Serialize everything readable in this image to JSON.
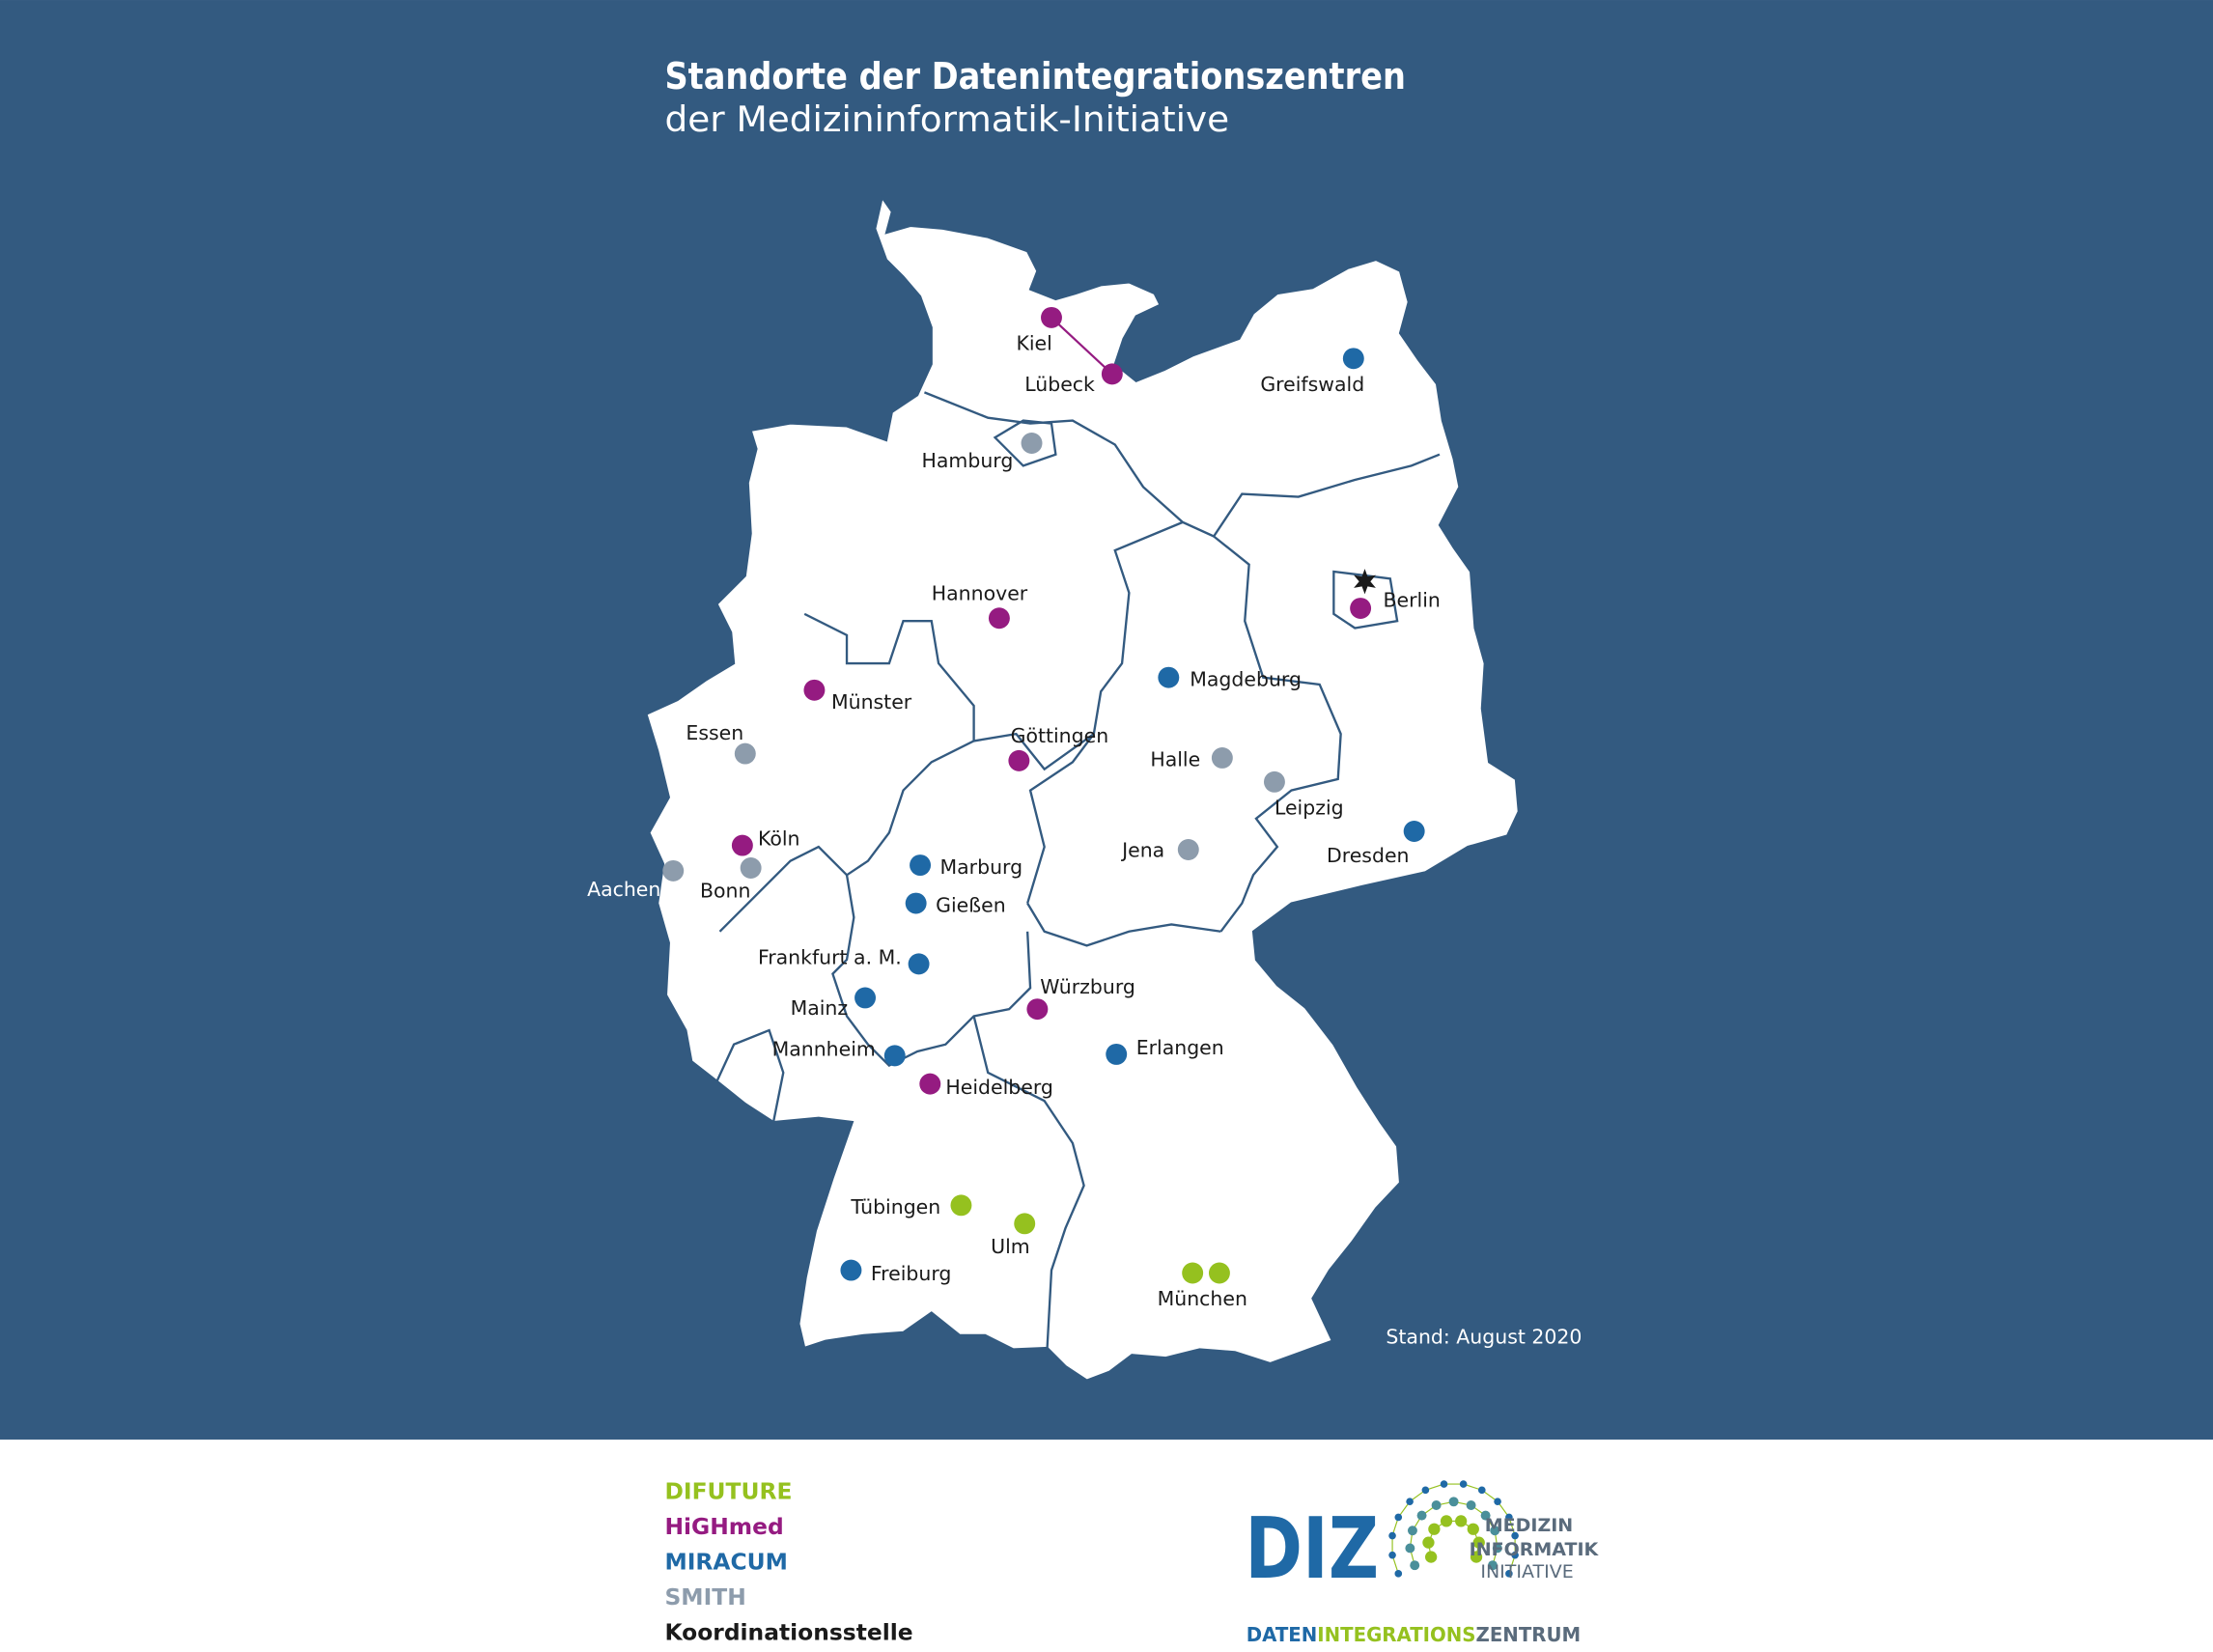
{
  "header": {
    "title": "Standorte der Datenintegrationszentren",
    "subtitle": "der Medizininformatik-Initiative"
  },
  "colors": {
    "background": "#335a80",
    "DIFUTURE": "#95c11f",
    "HiGHmed": "#951b81",
    "MIRACUM": "#1f69a6",
    "SMITH": "#8d9cac",
    "Koordinationsstelle": "#1a1a1a"
  },
  "map": {
    "stand": "Stand: August 2020",
    "cities": [
      {
        "name": "Kiel",
        "network": "HiGHmed"
      },
      {
        "name": "Lübeck",
        "network": "HiGHmed"
      },
      {
        "name": "Hamburg",
        "network": "SMITH"
      },
      {
        "name": "Greifswald",
        "network": "MIRACUM"
      },
      {
        "name": "Berlin",
        "network": "HiGHmed"
      },
      {
        "name": "Hannover",
        "network": "HiGHmed"
      },
      {
        "name": "Münster",
        "network": "HiGHmed"
      },
      {
        "name": "Magdeburg",
        "network": "MIRACUM"
      },
      {
        "name": "Essen",
        "network": "SMITH"
      },
      {
        "name": "Göttingen",
        "network": "HiGHmed"
      },
      {
        "name": "Halle",
        "network": "SMITH"
      },
      {
        "name": "Leipzig",
        "network": "SMITH"
      },
      {
        "name": "Dresden",
        "network": "MIRACUM"
      },
      {
        "name": "Köln",
        "network": "HiGHmed"
      },
      {
        "name": "Bonn",
        "network": "SMITH"
      },
      {
        "name": "Aachen",
        "network": "SMITH"
      },
      {
        "name": "Marburg",
        "network": "MIRACUM"
      },
      {
        "name": "Jena",
        "network": "SMITH"
      },
      {
        "name": "Gießen",
        "network": "MIRACUM"
      },
      {
        "name": "Frankfurt a. M.",
        "network": "MIRACUM"
      },
      {
        "name": "Mainz",
        "network": "MIRACUM"
      },
      {
        "name": "Würzburg",
        "network": "HiGHmed"
      },
      {
        "name": "Erlangen",
        "network": "MIRACUM"
      },
      {
        "name": "Mannheim",
        "network": "MIRACUM"
      },
      {
        "name": "Heidelberg",
        "network": "HiGHmed"
      },
      {
        "name": "Tübingen",
        "network": "DIFUTURE"
      },
      {
        "name": "Ulm",
        "network": "DIFUTURE"
      },
      {
        "name": "Freiburg",
        "network": "MIRACUM"
      },
      {
        "name": "München",
        "network": "DIFUTURE",
        "dots": 2
      }
    ],
    "coordination": {
      "name": "Berlin",
      "icon": "star-icon"
    }
  },
  "legend": {
    "items": [
      {
        "label": "DIFUTURE",
        "color": "#95c11f"
      },
      {
        "label": "HiGHmed",
        "color": "#951b81"
      },
      {
        "label": "MIRACUM",
        "color": "#1f69a6"
      },
      {
        "label": "SMITH",
        "color": "#8d9cac"
      },
      {
        "label": "Koordinationsstelle",
        "color": "#1a1a1a"
      }
    ]
  },
  "logo": {
    "mark": "DIZ",
    "line1": "MEDIZIN",
    "line2": "INFORMATIK",
    "line3": "INITIATIVE",
    "tagline_part1": "DATEN",
    "tagline_part2": "INTEGRATIONS",
    "tagline_part3": "ZENTRUM"
  }
}
